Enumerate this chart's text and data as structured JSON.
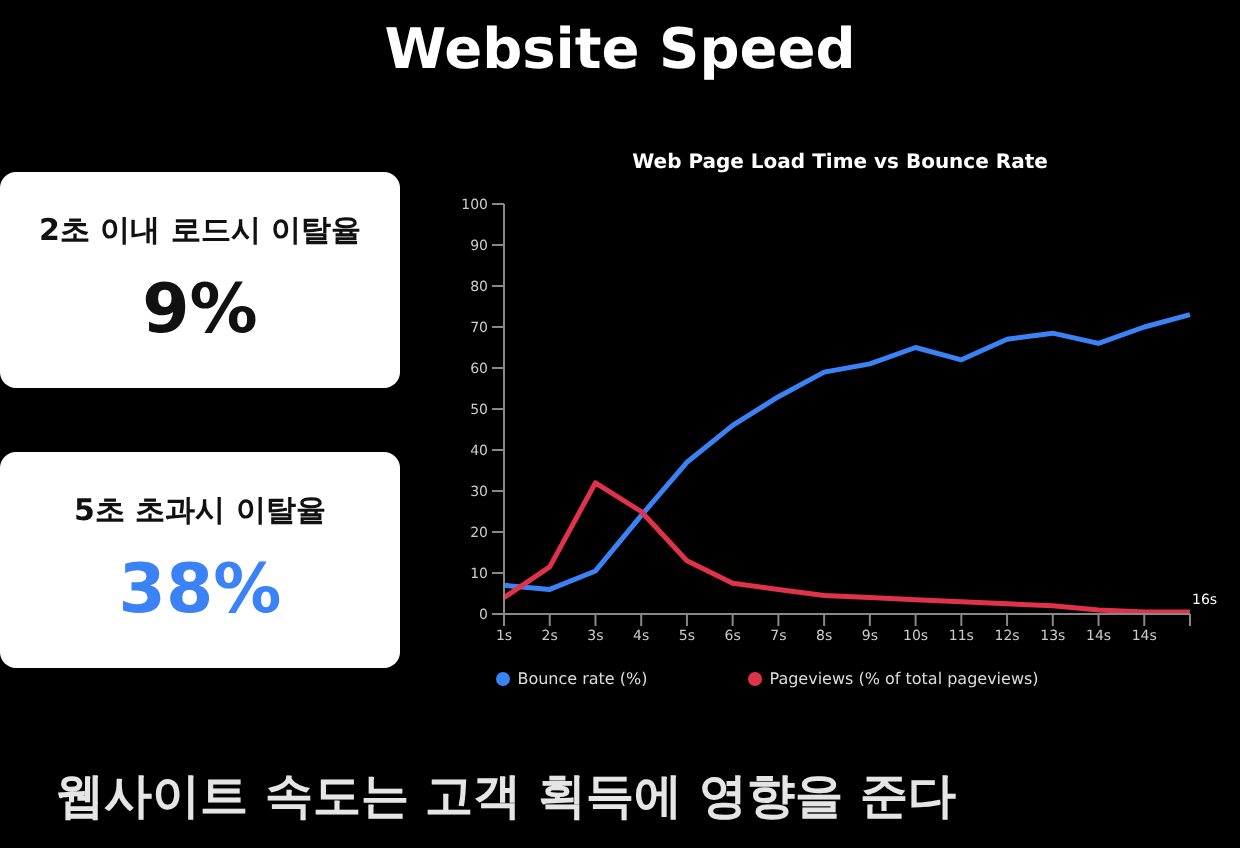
{
  "chart_data": {
    "type": "line",
    "title": "Web Page Load Time vs Bounce Rate",
    "categories": [
      "1s",
      "2s",
      "3s",
      "4s",
      "5s",
      "6s",
      "7s",
      "8s",
      "9s",
      "10s",
      "11s",
      "12s",
      "13s",
      "14s",
      "14s",
      null
    ],
    "series": [
      {
        "name": "Bounce rate (%)",
        "color": "#3b82f6",
        "values": [
          7,
          6,
          10.5,
          24,
          37,
          46,
          53,
          59,
          61,
          65,
          62,
          67,
          68.5,
          66,
          70,
          73
        ]
      },
      {
        "name": "Pageviews (% of total pageviews)",
        "color": "#e0334a",
        "values": [
          4,
          11.5,
          32,
          25,
          13,
          7.5,
          6,
          4.5,
          4,
          3.5,
          3,
          2.5,
          2,
          1,
          0.5,
          0.5
        ]
      }
    ],
    "ylim": [
      0,
      100
    ],
    "yticks": [
      0,
      10,
      20,
      30,
      40,
      50,
      60,
      70,
      80,
      90,
      100
    ],
    "grid": false,
    "legend": "bottom",
    "marker": "none",
    "line_style": "solid",
    "annotations": [
      "Website Speed",
      "2초 이내 로드시 이탈율",
      "9%",
      "5초 초과시 이탈율",
      "38%",
      "웹사이트 속도는 고객 획득에 영향을 준다",
      "16s"
    ]
  }
}
